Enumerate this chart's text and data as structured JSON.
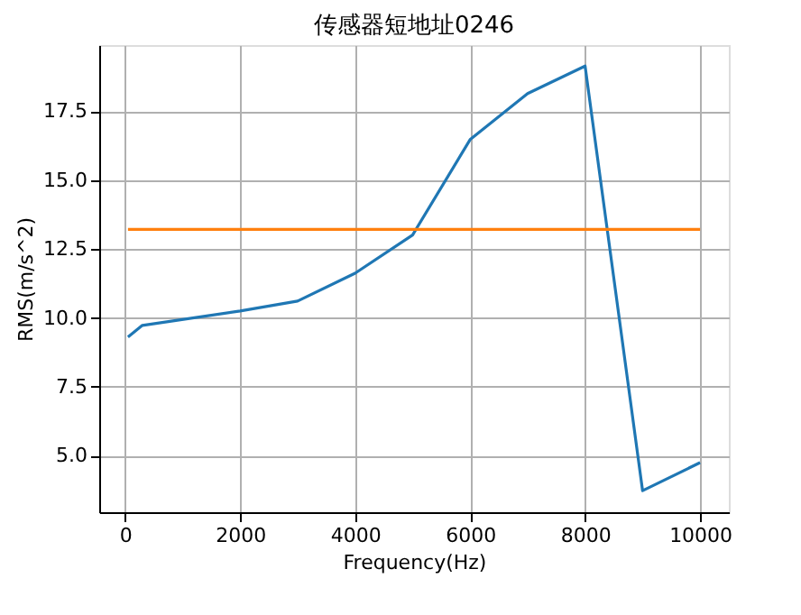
{
  "chart_data": {
    "type": "line",
    "title": "传感器短地址0246",
    "xlabel": "Frequency(Hz)",
    "ylabel": "RMS(m/s^2)",
    "x": [
      50,
      300,
      2000,
      3000,
      4000,
      5000,
      6000,
      7000,
      8000,
      9000,
      10000
    ],
    "series": [
      {
        "color": "#1f77b4",
        "values": [
          9.31,
          9.73,
          10.25,
          10.61,
          11.62,
          13.01,
          16.47,
          18.14,
          19.14,
          3.73,
          4.75
        ]
      },
      {
        "color": "#ff7f0e",
        "x": [
          50,
          10000
        ],
        "values": [
          13.21,
          13.21
        ]
      }
    ],
    "xlim": [
      -450,
      10500
    ],
    "xticks": [
      0,
      2000,
      4000,
      6000,
      8000,
      10000
    ],
    "ylim": [
      2.95,
      19.9
    ],
    "yticks": [
      {
        "value": 5,
        "label": "5.0"
      },
      {
        "value": 7.5,
        "label": "7.5"
      },
      {
        "value": 10,
        "label": "10.0"
      },
      {
        "value": 12.5,
        "label": "12.5"
      },
      {
        "value": 15,
        "label": "15.0"
      },
      {
        "value": 17.5,
        "label": "17.5"
      }
    ],
    "grid": true
  }
}
